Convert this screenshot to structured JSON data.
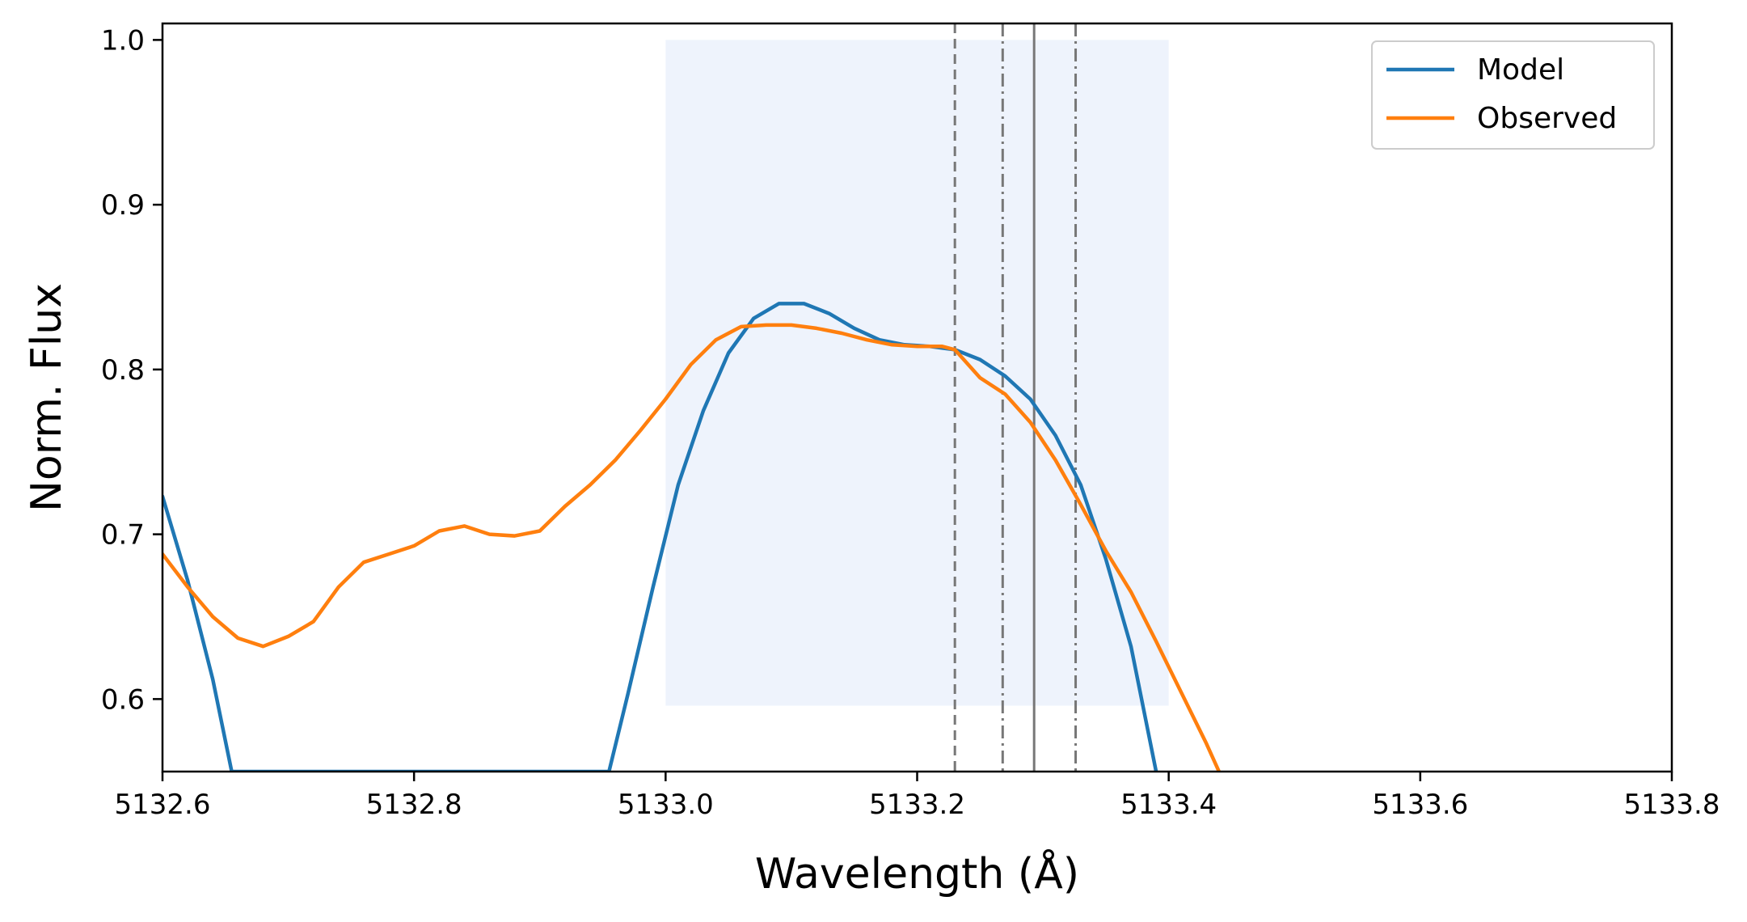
{
  "chart_data": {
    "type": "line",
    "xlabel": "Wavelength (Å)",
    "ylabel": "Norm. Flux",
    "xlim": [
      5132.6,
      5133.8
    ],
    "ylim": [
      0.556,
      1.01
    ],
    "x_ticks": [
      "5132.6",
      "5132.8",
      "5133.0",
      "5133.2",
      "5133.4",
      "5133.6",
      "5133.8"
    ],
    "y_ticks": [
      "0.6",
      "0.7",
      "0.8",
      "0.9",
      "1.0"
    ],
    "grid": false,
    "legend_position": "top-right",
    "shaded_region": {
      "x": [
        5133.0,
        5133.4
      ],
      "y": [
        0.596,
        1.0
      ],
      "color": "#eef3fc"
    },
    "vlines": [
      {
        "x": 5133.23,
        "style": "dashed",
        "color": "#777777"
      },
      {
        "x": 5133.268,
        "style": "dashdot",
        "color": "#777777"
      },
      {
        "x": 5133.293,
        "style": "solid",
        "color": "#777777"
      },
      {
        "x": 5133.326,
        "style": "dashdot",
        "color": "#777777"
      }
    ],
    "series": [
      {
        "name": "Model",
        "color": "#1f77b4",
        "points": [
          [
            5132.6,
            0.723
          ],
          [
            5132.62,
            0.672
          ],
          [
            5132.64,
            0.612
          ],
          [
            5132.655,
            0.556
          ],
          [
            5132.955,
            0.556
          ],
          [
            5132.97,
            0.603
          ],
          [
            5132.99,
            0.668
          ],
          [
            5133.01,
            0.73
          ],
          [
            5133.03,
            0.775
          ],
          [
            5133.05,
            0.81
          ],
          [
            5133.07,
            0.831
          ],
          [
            5133.09,
            0.84
          ],
          [
            5133.11,
            0.84
          ],
          [
            5133.13,
            0.834
          ],
          [
            5133.15,
            0.825
          ],
          [
            5133.17,
            0.818
          ],
          [
            5133.19,
            0.815
          ],
          [
            5133.21,
            0.814
          ],
          [
            5133.23,
            0.812
          ],
          [
            5133.25,
            0.806
          ],
          [
            5133.27,
            0.796
          ],
          [
            5133.29,
            0.782
          ],
          [
            5133.31,
            0.76
          ],
          [
            5133.33,
            0.73
          ],
          [
            5133.35,
            0.685
          ],
          [
            5133.37,
            0.632
          ],
          [
            5133.39,
            0.556
          ]
        ]
      },
      {
        "name": "Observed",
        "color": "#ff7f0e",
        "points": [
          [
            5132.6,
            0.688
          ],
          [
            5132.62,
            0.668
          ],
          [
            5132.64,
            0.65
          ],
          [
            5132.66,
            0.637
          ],
          [
            5132.68,
            0.632
          ],
          [
            5132.7,
            0.638
          ],
          [
            5132.72,
            0.647
          ],
          [
            5132.74,
            0.668
          ],
          [
            5132.76,
            0.683
          ],
          [
            5132.78,
            0.688
          ],
          [
            5132.8,
            0.693
          ],
          [
            5132.82,
            0.702
          ],
          [
            5132.84,
            0.705
          ],
          [
            5132.86,
            0.7
          ],
          [
            5132.88,
            0.699
          ],
          [
            5132.9,
            0.702
          ],
          [
            5132.92,
            0.717
          ],
          [
            5132.94,
            0.73
          ],
          [
            5132.96,
            0.745
          ],
          [
            5132.98,
            0.763
          ],
          [
            5133.0,
            0.782
          ],
          [
            5133.02,
            0.803
          ],
          [
            5133.04,
            0.818
          ],
          [
            5133.06,
            0.826
          ],
          [
            5133.08,
            0.827
          ],
          [
            5133.1,
            0.827
          ],
          [
            5133.12,
            0.825
          ],
          [
            5133.14,
            0.822
          ],
          [
            5133.16,
            0.818
          ],
          [
            5133.18,
            0.815
          ],
          [
            5133.2,
            0.814
          ],
          [
            5133.22,
            0.814
          ],
          [
            5133.23,
            0.812
          ],
          [
            5133.25,
            0.795
          ],
          [
            5133.27,
            0.785
          ],
          [
            5133.29,
            0.768
          ],
          [
            5133.31,
            0.745
          ],
          [
            5133.33,
            0.718
          ],
          [
            5133.35,
            0.69
          ],
          [
            5133.37,
            0.665
          ],
          [
            5133.39,
            0.635
          ],
          [
            5133.41,
            0.604
          ],
          [
            5133.43,
            0.573
          ],
          [
            5133.44,
            0.556
          ]
        ]
      }
    ]
  }
}
